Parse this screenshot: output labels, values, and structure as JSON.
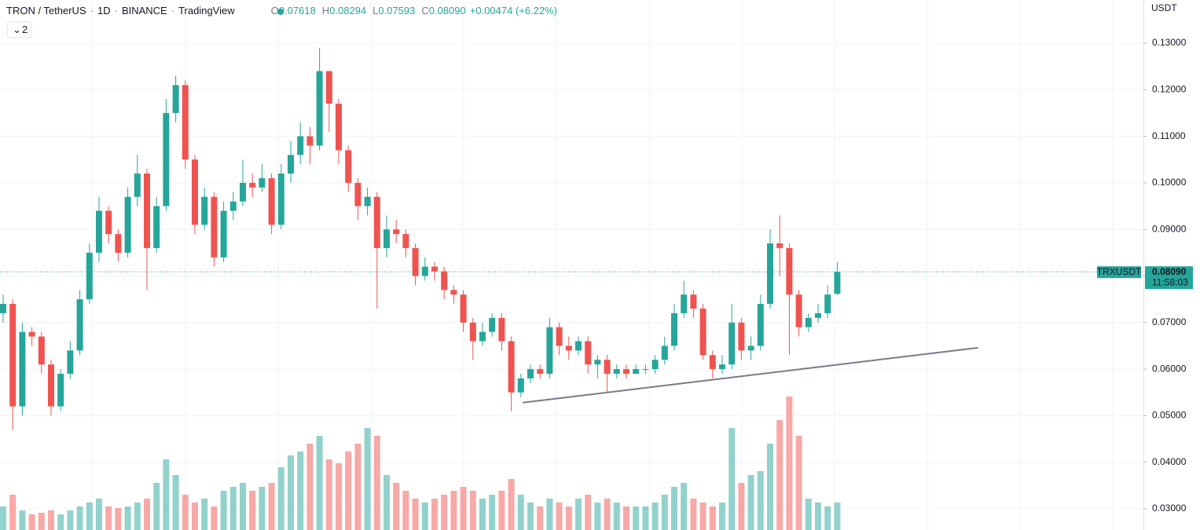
{
  "header": {
    "parts": [
      "TRON / TetherUS",
      "1D",
      "BINANCE",
      "TradingView"
    ],
    "ohlc": [
      {
        "key": "O",
        "value": "0.07618"
      },
      {
        "key": "H",
        "value": "0.08294"
      },
      {
        "key": "L",
        "value": "0.07593"
      },
      {
        "key": "C",
        "value": "0.08090"
      }
    ],
    "change": "+0.00474 (+6.22%)",
    "collapse": "2"
  },
  "chart_data": {
    "type": "candlestick",
    "currency": "USDT",
    "symbol_badge": "TRXUSDT",
    "countdown": "11:58:03",
    "colors": {
      "up": "#26a69a",
      "down": "#ef5350"
    },
    "ylim": [
      0.02545,
      0.13927
    ],
    "yticks": [
      {
        "value": 0.03,
        "label": "0.03000"
      },
      {
        "value": 0.04,
        "label": "0.04000"
      },
      {
        "value": 0.05,
        "label": "0.05000"
      },
      {
        "value": 0.06,
        "label": "0.06000"
      },
      {
        "value": 0.07,
        "label": "0.07000"
      },
      {
        "value": 0.08,
        "label": "0.08000"
      },
      {
        "value": 0.09,
        "label": "0.09000"
      },
      {
        "value": 0.1,
        "label": "0.10000"
      },
      {
        "value": 0.11,
        "label": "0.11000"
      },
      {
        "value": 0.12,
        "label": "0.12000"
      },
      {
        "value": 0.13,
        "label": "0.13000"
      }
    ],
    "last_price": {
      "value": 0.0809,
      "label": "0.08090"
    },
    "open": [
      0.072,
      0.074,
      0.052,
      0.068,
      0.067,
      0.061,
      0.052,
      0.059,
      0.064,
      0.075,
      0.085,
      0.094,
      0.089,
      0.085,
      0.097,
      0.102,
      0.086,
      0.095,
      0.115,
      0.121,
      0.105,
      0.091,
      0.097,
      0.084,
      0.094,
      0.096,
      0.1,
      0.099,
      0.101,
      0.091,
      0.102,
      0.106,
      0.11,
      0.108,
      0.124,
      0.117,
      0.107,
      0.1,
      0.095,
      0.097,
      0.086,
      0.09,
      0.089,
      0.086,
      0.08,
      0.082,
      0.081,
      0.077,
      0.076,
      0.07,
      0.066,
      0.068,
      0.071,
      0.066,
      0.055,
      0.058,
      0.06,
      0.059,
      0.069,
      0.065,
      0.064,
      0.066,
      0.061,
      0.062,
      0.059,
      0.06,
      0.059,
      0.06,
      0.06,
      0.062,
      0.065,
      0.072,
      0.076,
      0.073,
      0.063,
      0.06,
      0.061,
      0.07,
      0.064,
      0.065,
      0.074,
      0.087,
      0.086,
      0.076,
      0.069,
      0.071,
      0.072,
      0.07618
    ],
    "high": [
      0.076,
      0.075,
      0.07,
      0.069,
      0.068,
      0.062,
      0.06,
      0.066,
      0.077,
      0.087,
      0.097,
      0.095,
      0.09,
      0.099,
      0.106,
      0.103,
      0.097,
      0.118,
      0.123,
      0.122,
      0.106,
      0.099,
      0.098,
      0.096,
      0.098,
      0.105,
      0.102,
      0.104,
      0.102,
      0.104,
      0.109,
      0.113,
      0.112,
      0.129,
      0.124,
      0.118,
      0.108,
      0.101,
      0.099,
      0.098,
      0.093,
      0.092,
      0.09,
      0.087,
      0.084,
      0.083,
      0.082,
      0.078,
      0.077,
      0.071,
      0.07,
      0.072,
      0.072,
      0.067,
      0.059,
      0.061,
      0.061,
      0.071,
      0.07,
      0.067,
      0.067,
      0.067,
      0.063,
      0.063,
      0.061,
      0.061,
      0.061,
      0.061,
      0.063,
      0.067,
      0.074,
      0.079,
      0.077,
      0.074,
      0.064,
      0.063,
      0.074,
      0.071,
      0.067,
      0.076,
      0.09,
      0.093,
      0.087,
      0.077,
      0.072,
      0.074,
      0.078,
      0.08294
    ],
    "low": [
      0.07,
      0.047,
      0.05,
      0.065,
      0.059,
      0.05,
      0.051,
      0.058,
      0.063,
      0.074,
      0.083,
      0.087,
      0.083,
      0.084,
      0.095,
      0.077,
      0.085,
      0.094,
      0.113,
      0.103,
      0.089,
      0.09,
      0.082,
      0.083,
      0.092,
      0.095,
      0.097,
      0.098,
      0.089,
      0.09,
      0.1,
      0.104,
      0.104,
      0.107,
      0.111,
      0.104,
      0.098,
      0.092,
      0.093,
      0.073,
      0.084,
      0.087,
      0.084,
      0.078,
      0.079,
      0.079,
      0.075,
      0.074,
      0.068,
      0.062,
      0.065,
      0.067,
      0.064,
      0.051,
      0.054,
      0.057,
      0.058,
      0.058,
      0.063,
      0.062,
      0.063,
      0.059,
      0.058,
      0.055,
      0.058,
      0.058,
      0.059,
      0.059,
      0.059,
      0.061,
      0.064,
      0.071,
      0.071,
      0.062,
      0.058,
      0.059,
      0.06,
      0.062,
      0.062,
      0.064,
      0.073,
      0.08,
      0.063,
      0.067,
      0.068,
      0.07,
      0.071,
      0.07593
    ],
    "close": [
      0.074,
      0.052,
      0.068,
      0.067,
      0.061,
      0.052,
      0.059,
      0.064,
      0.075,
      0.085,
      0.094,
      0.089,
      0.085,
      0.097,
      0.102,
      0.086,
      0.095,
      0.115,
      0.121,
      0.105,
      0.091,
      0.097,
      0.084,
      0.094,
      0.096,
      0.1,
      0.099,
      0.101,
      0.091,
      0.102,
      0.106,
      0.11,
      0.108,
      0.124,
      0.117,
      0.107,
      0.1,
      0.095,
      0.097,
      0.086,
      0.09,
      0.089,
      0.086,
      0.08,
      0.082,
      0.081,
      0.077,
      0.076,
      0.07,
      0.066,
      0.068,
      0.071,
      0.066,
      0.055,
      0.058,
      0.06,
      0.059,
      0.069,
      0.065,
      0.064,
      0.066,
      0.061,
      0.062,
      0.059,
      0.06,
      0.059,
      0.06,
      0.06,
      0.062,
      0.065,
      0.072,
      0.076,
      0.073,
      0.063,
      0.06,
      0.061,
      0.07,
      0.064,
      0.065,
      0.074,
      0.087,
      0.086,
      0.076,
      0.069,
      0.071,
      0.072,
      0.076,
      0.0809
    ],
    "volume": [
      30,
      45,
      25,
      20,
      22,
      25,
      20,
      25,
      30,
      35,
      40,
      30,
      28,
      30,
      35,
      40,
      60,
      90,
      70,
      45,
      35,
      40,
      30,
      50,
      55,
      60,
      50,
      55,
      60,
      80,
      95,
      100,
      110,
      120,
      90,
      85,
      100,
      110,
      130,
      120,
      70,
      60,
      50,
      40,
      35,
      40,
      45,
      50,
      55,
      50,
      40,
      45,
      50,
      65,
      45,
      35,
      30,
      40,
      35,
      30,
      40,
      45,
      35,
      40,
      35,
      30,
      30,
      30,
      35,
      45,
      55,
      60,
      40,
      35,
      30,
      35,
      130,
      60,
      70,
      75,
      110,
      140,
      170,
      120,
      40,
      35,
      30,
      35
    ],
    "vlim": [
      0,
      200
    ],
    "trendline": {
      "x": [
        54.2,
        101.7
      ],
      "y": [
        0.0528,
        0.0646
      ],
      "color": "#787b86"
    }
  }
}
